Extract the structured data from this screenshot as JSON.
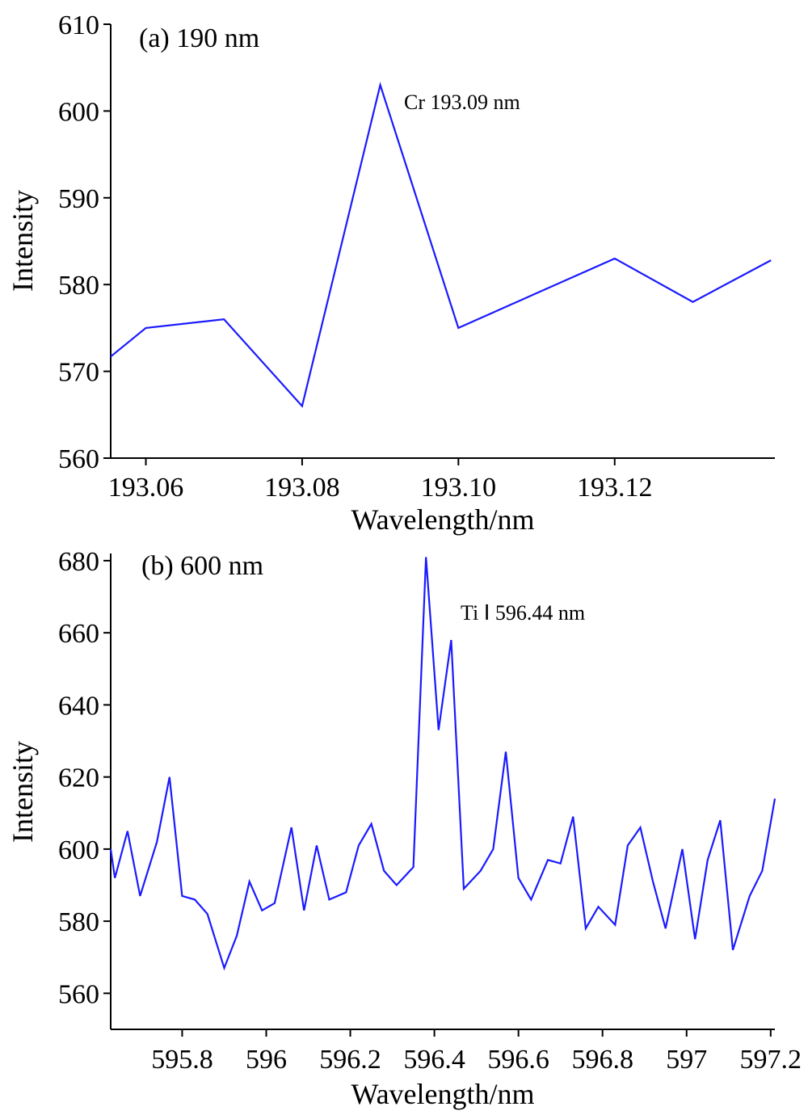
{
  "chart_data": [
    {
      "type": "line",
      "panel_label": "(a) 190 nm",
      "annotation": "Cr 193.09 nm",
      "xlabel": "Wavelength/nm",
      "ylabel": "Intensity",
      "xlim": [
        193.0555,
        193.1405
      ],
      "ylim": [
        560,
        610
      ],
      "xticks": [
        193.06,
        193.08,
        193.1,
        193.12
      ],
      "xtick_labels": [
        "193.06",
        "193.08",
        "193.10",
        "193.12"
      ],
      "yticks": [
        560,
        570,
        580,
        590,
        600,
        610
      ],
      "ytick_labels": [
        "560",
        "570",
        "580",
        "590",
        "600",
        "610"
      ],
      "series": [
        {
          "x": [
            193.0555,
            193.06,
            193.07,
            193.08,
            193.09,
            193.1,
            193.11,
            193.12,
            193.13,
            193.14
          ],
          "y": [
            571.7,
            575,
            576,
            566,
            603,
            575,
            579,
            583,
            578,
            582.8
          ]
        }
      ]
    },
    {
      "type": "line",
      "panel_label": "(b) 600 nm",
      "annotation": "Ti Ⅰ 596.44 nm",
      "xlabel": "Wavelength/nm",
      "ylabel": "Intensity",
      "xlim": [
        595.63,
        597.21
      ],
      "ylim": [
        550,
        682
      ],
      "xticks": [
        595.8,
        596.0,
        596.2,
        596.4,
        596.6,
        596.8,
        597.0,
        597.2
      ],
      "xtick_labels": [
        "595.8",
        "596",
        "596.2",
        "596.4",
        "596.6",
        "596.8",
        "597",
        "597.2"
      ],
      "yticks": [
        560,
        580,
        600,
        620,
        640,
        660,
        680
      ],
      "ytick_labels": [
        "560",
        "580",
        "600",
        "620",
        "640",
        "660",
        "680"
      ],
      "series": [
        {
          "x": [
            595.63,
            595.64,
            595.67,
            595.7,
            595.74,
            595.77,
            595.8,
            595.83,
            595.86,
            595.9,
            595.93,
            595.96,
            595.99,
            596.02,
            596.06,
            596.09,
            596.12,
            596.15,
            596.19,
            596.22,
            596.25,
            596.28,
            596.31,
            596.35,
            596.38,
            596.41,
            596.44,
            596.47,
            596.51,
            596.54,
            596.57,
            596.6,
            596.63,
            596.67,
            596.7,
            596.73,
            596.76,
            596.79,
            596.83,
            596.86,
            596.89,
            596.92,
            596.95,
            596.99,
            597.02,
            597.05,
            597.08,
            597.11,
            597.15,
            597.18,
            597.21
          ],
          "y": [
            600,
            592,
            605,
            587,
            602,
            620,
            587,
            586,
            582,
            567,
            576,
            591,
            583,
            585,
            606,
            583,
            601,
            586,
            588,
            601,
            607,
            594,
            590,
            595,
            681,
            633,
            658,
            589,
            594,
            600,
            627,
            592,
            586,
            597,
            596,
            609,
            578,
            584,
            579,
            601,
            606,
            591,
            578,
            600,
            575,
            597,
            608,
            572,
            587,
            594,
            614
          ]
        }
      ]
    }
  ]
}
